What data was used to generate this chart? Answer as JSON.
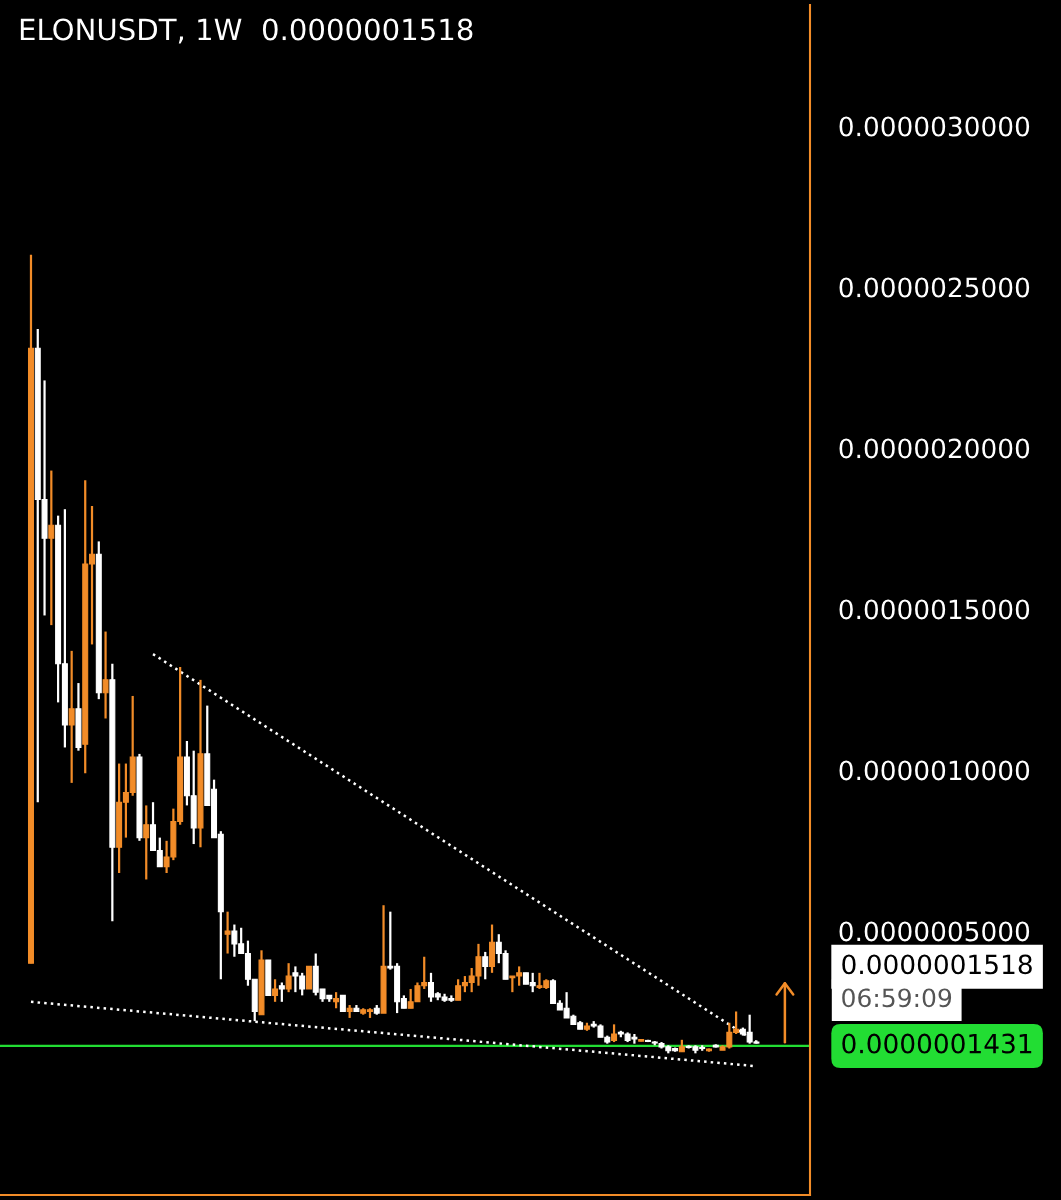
{
  "chart_data": {
    "type": "candlestick",
    "title": "ELONUSDT, 1W  0.0000001518",
    "categories": [
      null,
      null,
      null,
      null,
      null,
      null,
      null,
      null,
      null,
      null,
      null,
      null,
      null,
      null,
      null,
      null,
      null,
      null,
      null,
      null,
      null,
      null,
      null,
      null,
      null,
      null,
      null,
      null,
      null,
      null,
      null,
      null,
      null,
      null,
      null,
      null,
      null,
      null,
      null,
      null,
      null,
      null,
      null,
      null,
      null,
      null,
      null,
      null,
      null,
      null,
      null,
      null,
      null,
      null,
      null,
      null,
      null,
      null,
      null,
      null,
      null,
      null,
      null,
      null,
      null,
      null,
      null,
      null,
      null,
      null,
      null,
      null,
      null,
      null,
      null,
      null,
      null,
      null,
      null,
      null,
      null,
      null,
      null,
      null,
      null,
      null,
      null,
      null,
      null,
      null,
      null,
      null,
      null,
      null,
      null,
      null,
      null,
      null,
      null,
      null,
      null,
      null,
      null,
      null,
      null,
      null,
      null,
      null
    ],
    "ohlc": [
      [
        4e-07,
        2.6e-06,
        4e-07,
        2.31e-06
      ],
      [
        2.31e-06,
        2.37e-06,
        9e-07,
        1.84e-06
      ],
      [
        1.84e-06,
        2.21e-06,
        1.48e-06,
        1.72e-06
      ],
      [
        1.72e-06,
        1.93e-06,
        1.45e-06,
        1.76e-06
      ],
      [
        1.76e-06,
        1.79e-06,
        1.21e-06,
        1.33e-06
      ],
      [
        1.33e-06,
        1.81e-06,
        1.07e-06,
        1.14e-06
      ],
      [
        1.14e-06,
        1.37e-06,
        9.6e-07,
        1.19e-06
      ],
      [
        1.19e-06,
        1.27e-06,
        1.06e-06,
        1.07e-06
      ],
      [
        1.08e-06,
        1.9e-06,
        9.9e-07,
        1.64e-06
      ],
      [
        1.64e-06,
        1.82e-06,
        1.39e-06,
        1.67e-06
      ],
      [
        1.67e-06,
        1.71e-06,
        1.22e-06,
        1.24e-06
      ],
      [
        1.24e-06,
        1.43e-06,
        1.16e-06,
        1.28e-06
      ],
      [
        1.28e-06,
        1.33e-06,
        5.3e-07,
        7.6e-07
      ],
      [
        7.6e-07,
        1.02e-06,
        6.8e-07,
        9e-07
      ],
      [
        9e-07,
        1.02e-06,
        7.9e-07,
        9.3e-07
      ],
      [
        9.3e-07,
        1.23e-06,
        9.2e-07,
        1.04e-06
      ],
      [
        1.04e-06,
        1.05e-06,
        7.8e-07,
        7.9e-07
      ],
      [
        7.9e-07,
        8.9e-07,
        6.6e-07,
        8.3e-07
      ],
      [
        8.3e-07,
        9e-07,
        7.5e-07,
        7.5e-07
      ],
      [
        7.5e-07,
        7.9e-07,
        7e-07,
        7e-07
      ],
      [
        7e-07,
        7.8e-07,
        6.8e-07,
        7.3e-07
      ],
      [
        7.3e-07,
        8.8e-07,
        7.2e-07,
        8.4e-07
      ],
      [
        8.4e-07,
        1.32e-06,
        8.3e-07,
        1.04e-06
      ],
      [
        1.04e-06,
        1.09e-06,
        8.9e-07,
        9.2e-07
      ],
      [
        9.2e-07,
        1.06e-06,
        7.7e-07,
        8.2e-07
      ],
      [
        8.2e-07,
        1.28e-06,
        7.6e-07,
        1.05e-06
      ],
      [
        1.05e-06,
        1.2e-06,
        8.9e-07,
        8.9e-07
      ],
      [
        9.4e-07,
        9.7e-07,
        7.9e-07,
        7.9e-07
      ],
      [
        8e-07,
        8.1e-07,
        3.5e-07,
        5.6e-07
      ],
      [
        4.9e-07,
        5.6e-07,
        4.3e-07,
        5e-07
      ],
      [
        5e-07,
        5.2e-07,
        4.2e-07,
        4.6e-07
      ],
      [
        4.6e-07,
        5.1e-07,
        4.3e-07,
        4.3e-07
      ],
      [
        4.3e-07,
        4.7e-07,
        3.3e-07,
        3.5e-07
      ],
      [
        3.5e-07,
        3.5e-07,
        2.2e-07,
        2.5e-07
      ],
      [
        2.4e-07,
        4.4e-07,
        2.4e-07,
        4.1e-07
      ],
      [
        4.1e-07,
        4.1e-07,
        3e-07,
        3e-07
      ],
      [
        3e-07,
        3.5e-07,
        2.8e-07,
        3.2e-07
      ],
      [
        3.3e-07,
        3.4e-07,
        2.8e-07,
        3.2e-07
      ],
      [
        3.2e-07,
        4e-07,
        3.1e-07,
        3.6e-07
      ],
      [
        3.7e-07,
        3.9e-07,
        3.1e-07,
        3.6e-07
      ],
      [
        3.6e-07,
        3.7e-07,
        3e-07,
        3.2e-07
      ],
      [
        3.2e-07,
        3.9e-07,
        3.2e-07,
        3.9e-07
      ],
      [
        3.9e-07,
        4.3e-07,
        3e-07,
        3.1e-07
      ],
      [
        3.2e-07,
        3.2e-07,
        2.8e-07,
        2.9e-07
      ],
      [
        3e-07,
        3e-07,
        2.8e-07,
        2.9e-07
      ],
      [
        2.8e-07,
        3.1e-07,
        2.6e-07,
        2.9e-07
      ],
      [
        3e-07,
        3e-07,
        2.5e-07,
        2.5e-07
      ],
      [
        2.5e-07,
        2.7e-07,
        2.3e-07,
        2.6e-07
      ],
      [
        2.6e-07,
        2.7e-07,
        2.5e-07,
        2.5e-07
      ],
      [
        2.45e-07,
        2.6e-07,
        2.4e-07,
        2.55e-07
      ],
      [
        2.5e-07,
        2.6e-07,
        2.3e-07,
        2.55e-07
      ],
      [
        2.6e-07,
        2.7e-07,
        2.4e-07,
        2.45e-07
      ],
      [
        2.45e-07,
        5.8e-07,
        2.45e-07,
        3.9e-07
      ],
      [
        3.9e-07,
        5.6e-07,
        3.8e-07,
        3.85e-07
      ],
      [
        3.9e-07,
        4e-07,
        2.45e-07,
        2.8e-07
      ],
      [
        2.9e-07,
        3e-07,
        2.6e-07,
        2.6e-07
      ],
      [
        2.6e-07,
        3.2e-07,
        2.6e-07,
        2.8e-07
      ],
      [
        2.8e-07,
        3.4e-07,
        2.8e-07,
        3.3e-07
      ],
      [
        3.3e-07,
        4.2e-07,
        3.2e-07,
        3.4e-07
      ],
      [
        3.4e-07,
        3.7e-07,
        2.8e-07,
        2.95e-07
      ],
      [
        3.05e-07,
        3.1e-07,
        2.85e-07,
        2.95e-07
      ],
      [
        2.95e-07,
        3.05e-07,
        2.8e-07,
        2.85e-07
      ],
      [
        2.9e-07,
        3e-07,
        2.8e-07,
        2.85e-07
      ],
      [
        2.85e-07,
        3.5e-07,
        2.85e-07,
        3.3e-07
      ],
      [
        3.3e-07,
        3.6e-07,
        3.1e-07,
        3.4e-07
      ],
      [
        3.4e-07,
        3.85e-07,
        3.1e-07,
        3.6e-07
      ],
      [
        3.6e-07,
        4.6e-07,
        3.3e-07,
        4.2e-07
      ],
      [
        4.2e-07,
        4.35e-07,
        3.5e-07,
        3.9e-07
      ],
      [
        3.9e-07,
        5.2e-07,
        3.7e-07,
        4.65e-07
      ],
      [
        4.65e-07,
        4.9e-07,
        4e-07,
        4.3e-07
      ],
      [
        4.3e-07,
        4.4e-07,
        3.5e-07,
        3.5e-07
      ],
      [
        3.55e-07,
        3.6e-07,
        3.1e-07,
        3.6e-07
      ],
      [
        3.6e-07,
        3.9e-07,
        3.3e-07,
        3.7e-07
      ],
      [
        3.7e-07,
        3.7e-07,
        3.35e-07,
        3.35e-07
      ],
      [
        3.4e-07,
        3.7e-07,
        3.1e-07,
        3.3e-07
      ],
      [
        3.25e-07,
        3.7e-07,
        3.2e-07,
        3.3e-07
      ],
      [
        3.25e-07,
        3.5e-07,
        3.2e-07,
        3.45e-07
      ],
      [
        3.45e-07,
        3.5e-07,
        2.75e-07,
        2.75e-07
      ],
      [
        2.75e-07,
        2.85e-07,
        2.55e-07,
        2.55e-07
      ],
      [
        2.6e-07,
        3.1e-07,
        2.3e-07,
        2.3e-07
      ],
      [
        2.35e-07,
        2.4e-07,
        2.1e-07,
        2.1e-07
      ],
      [
        2.15e-07,
        2.2e-07,
        1.95e-07,
        1.95e-07
      ],
      [
        1.95e-07,
        2.15e-07,
        1.9e-07,
        2.05e-07
      ],
      [
        2.1e-07,
        2.2e-07,
        2e-07,
        2.05e-07
      ],
      [
        2.05e-07,
        2.1e-07,
        1.7e-07,
        1.7e-07
      ],
      [
        1.7e-07,
        1.75e-07,
        1.5e-07,
        1.55e-07
      ],
      [
        1.6e-07,
        2.1e-07,
        1.55e-07,
        1.8e-07
      ],
      [
        1.85e-07,
        1.9e-07,
        1.7e-07,
        1.8e-07
      ],
      [
        1.8e-07,
        1.85e-07,
        1.55e-07,
        1.6e-07
      ],
      [
        1.7e-07,
        1.8e-07,
        1.5e-07,
        1.65e-07
      ],
      [
        1.58e-07,
        1.64e-07,
        1.57e-07,
        1.63e-07
      ],
      [
        1.6e-07,
        1.62e-07,
        1.55e-07,
        1.57e-07
      ],
      [
        1.55e-07,
        1.58e-07,
        1.45e-07,
        1.52e-07
      ],
      [
        1.5e-07,
        1.55e-07,
        1.35e-07,
        1.4e-07
      ],
      [
        1.4e-07,
        1.45e-07,
        1.2e-07,
        1.28e-07
      ],
      [
        1.35e-07,
        1.38e-07,
        1.25e-07,
        1.28e-07
      ],
      [
        1.25e-07,
        1.62e-07,
        1.25e-07,
        1.4e-07
      ],
      [
        1.42e-07,
        1.45e-07,
        1.35e-07,
        1.38e-07
      ],
      [
        1.4e-07,
        1.45e-07,
        1.2e-07,
        1.3e-07
      ],
      [
        1.38e-07,
        1.45e-07,
        1.28e-07,
        1.35e-07
      ],
      [
        1.28e-07,
        1.35e-07,
        1.25e-07,
        1.33e-07
      ],
      [
        1.45e-07,
        1.48e-07,
        1.38e-07,
        1.4e-07
      ],
      [
        1.3e-07,
        1.45e-07,
        1.3e-07,
        1.4e-07
      ],
      [
        1.4e-07,
        2.15e-07,
        1.35e-07,
        1.85e-07
      ],
      [
        1.85e-07,
        2.5e-07,
        1.8e-07,
        1.95e-07
      ],
      [
        1.95e-07,
        2e-07,
        1.75e-07,
        1.8e-07
      ],
      [
        1.85e-07,
        2.4e-07,
        1.5e-07,
        1.55e-07
      ],
      [
        1.55e-07,
        1.6e-07,
        1.5e-07,
        1.518e-07
      ]
    ],
    "colors": [
      "#f28c28",
      "#ffffff",
      "#ffffff",
      "#f28c28",
      "#ffffff",
      "#ffffff",
      "#f28c28",
      "#ffffff",
      "#f28c28",
      "#f28c28",
      "#ffffff",
      "#f28c28",
      "#ffffff",
      "#f28c28",
      "#f28c28",
      "#f28c28",
      "#ffffff",
      "#f28c28",
      "#ffffff",
      "#ffffff",
      "#f28c28",
      "#f28c28",
      "#f28c28",
      "#ffffff",
      "#ffffff",
      "#f28c28",
      "#ffffff",
      "#ffffff",
      "#ffffff",
      "#f28c28",
      "#ffffff",
      "#ffffff",
      "#ffffff",
      "#ffffff",
      "#f28c28",
      "#ffffff",
      "#f28c28",
      "#ffffff",
      "#f28c28",
      "#ffffff",
      "#ffffff",
      "#f28c28",
      "#ffffff",
      "#ffffff",
      "#ffffff",
      "#f28c28",
      "#ffffff",
      "#f28c28",
      "#ffffff",
      "#f28c28",
      "#f28c28",
      "#ffffff",
      "#f28c28",
      "#ffffff",
      "#ffffff",
      "#ffffff",
      "#f28c28",
      "#f28c28",
      "#f28c28",
      "#ffffff",
      "#ffffff",
      "#ffffff",
      "#ffffff",
      "#f28c28",
      "#f28c28",
      "#f28c28",
      "#f28c28",
      "#ffffff",
      "#f28c28",
      "#ffffff",
      "#ffffff",
      "#f28c28",
      "#f28c28",
      "#ffffff",
      "#ffffff",
      "#f28c28",
      "#f28c28",
      "#ffffff",
      "#ffffff",
      "#ffffff",
      "#ffffff",
      "#ffffff",
      "#f28c28",
      "#ffffff",
      "#ffffff",
      "#ffffff",
      "#f28c28",
      "#ffffff",
      "#ffffff",
      "#ffffff",
      "#f28c28",
      "#ffffff",
      "#ffffff",
      "#ffffff",
      "#ffffff",
      "#ffffff",
      "#f28c28",
      "#ffffff",
      "#ffffff",
      "#ffffff",
      "#f28c28",
      "#ffffff",
      "#f28c28",
      "#f28c28",
      "#f28c28",
      "#ffffff",
      "#ffffff",
      "#ffffff"
    ],
    "series": [
      {
        "type": "line",
        "values": [
          null,
          null,
          null,
          null,
          null,
          null,
          null,
          null,
          null,
          null,
          null,
          null,
          null,
          null,
          null,
          null,
          null,
          null,
          1.36e-06,
          null,
          null,
          null,
          null,
          null,
          null,
          null,
          null,
          null,
          null,
          null,
          null,
          null,
          null,
          null,
          null,
          null,
          null,
          null,
          null,
          null,
          null,
          null,
          null,
          null,
          null,
          null,
          null,
          null,
          null,
          null,
          null,
          null,
          null,
          null,
          null,
          null,
          null,
          null,
          null,
          null,
          null,
          null,
          null,
          null,
          null,
          null,
          null,
          null,
          null,
          null,
          null,
          null,
          null,
          null,
          null,
          null,
          null,
          null,
          null,
          null,
          null,
          null,
          null,
          null,
          null,
          null,
          null,
          null,
          null,
          null,
          null,
          null,
          null,
          null,
          null,
          null,
          null,
          null,
          null,
          null,
          null,
          null,
          null,
          null,
          null,
          null,
          null,
          1.55e-07
        ],
        "color": "#ffffff",
        "line_style": "dotted"
      },
      {
        "type": "line",
        "values": [
          2.8e-07,
          null,
          null,
          null,
          null,
          null,
          null,
          null,
          null,
          null,
          null,
          null,
          null,
          null,
          null,
          null,
          null,
          null,
          null,
          null,
          null,
          null,
          null,
          null,
          null,
          null,
          null,
          null,
          null,
          null,
          null,
          null,
          null,
          null,
          null,
          null,
          null,
          null,
          null,
          null,
          null,
          null,
          null,
          null,
          null,
          null,
          null,
          null,
          null,
          null,
          null,
          null,
          null,
          null,
          null,
          null,
          null,
          null,
          null,
          null,
          null,
          null,
          null,
          null,
          null,
          null,
          null,
          null,
          null,
          null,
          null,
          null,
          null,
          null,
          null,
          null,
          null,
          null,
          null,
          null,
          null,
          null,
          null,
          null,
          null,
          null,
          null,
          null,
          null,
          null,
          null,
          null,
          null,
          null,
          null,
          null,
          null,
          null,
          null,
          null,
          null,
          null,
          null,
          null,
          null,
          null,
          null,
          8e-08
        ],
        "color": "#ffffff",
        "line_style": "dotted"
      }
    ],
    "ylim": [
      -3.2e-07,
      3.376e-06
    ],
    "yticks": [
      {
        "value": 5e-07,
        "label": "0.0000005000"
      },
      {
        "value": 1e-06,
        "label": "0.0000010000"
      },
      {
        "value": 1.5e-06,
        "label": "0.0000015000"
      },
      {
        "value": 2e-06,
        "label": "0.0000020000"
      },
      {
        "value": 2.5e-06,
        "label": "0.0000025000"
      },
      {
        "value": 3e-06,
        "label": "0.0000030000"
      }
    ],
    "tick_labels": "y",
    "grid": false,
    "ref_lines": [
      {
        "axis": "y",
        "value": 1.431e-07,
        "label": "0.0000001431",
        "color": "#22dd33"
      }
    ],
    "annotations": [
      "0.0000001518",
      "06:59:09"
    ]
  }
}
